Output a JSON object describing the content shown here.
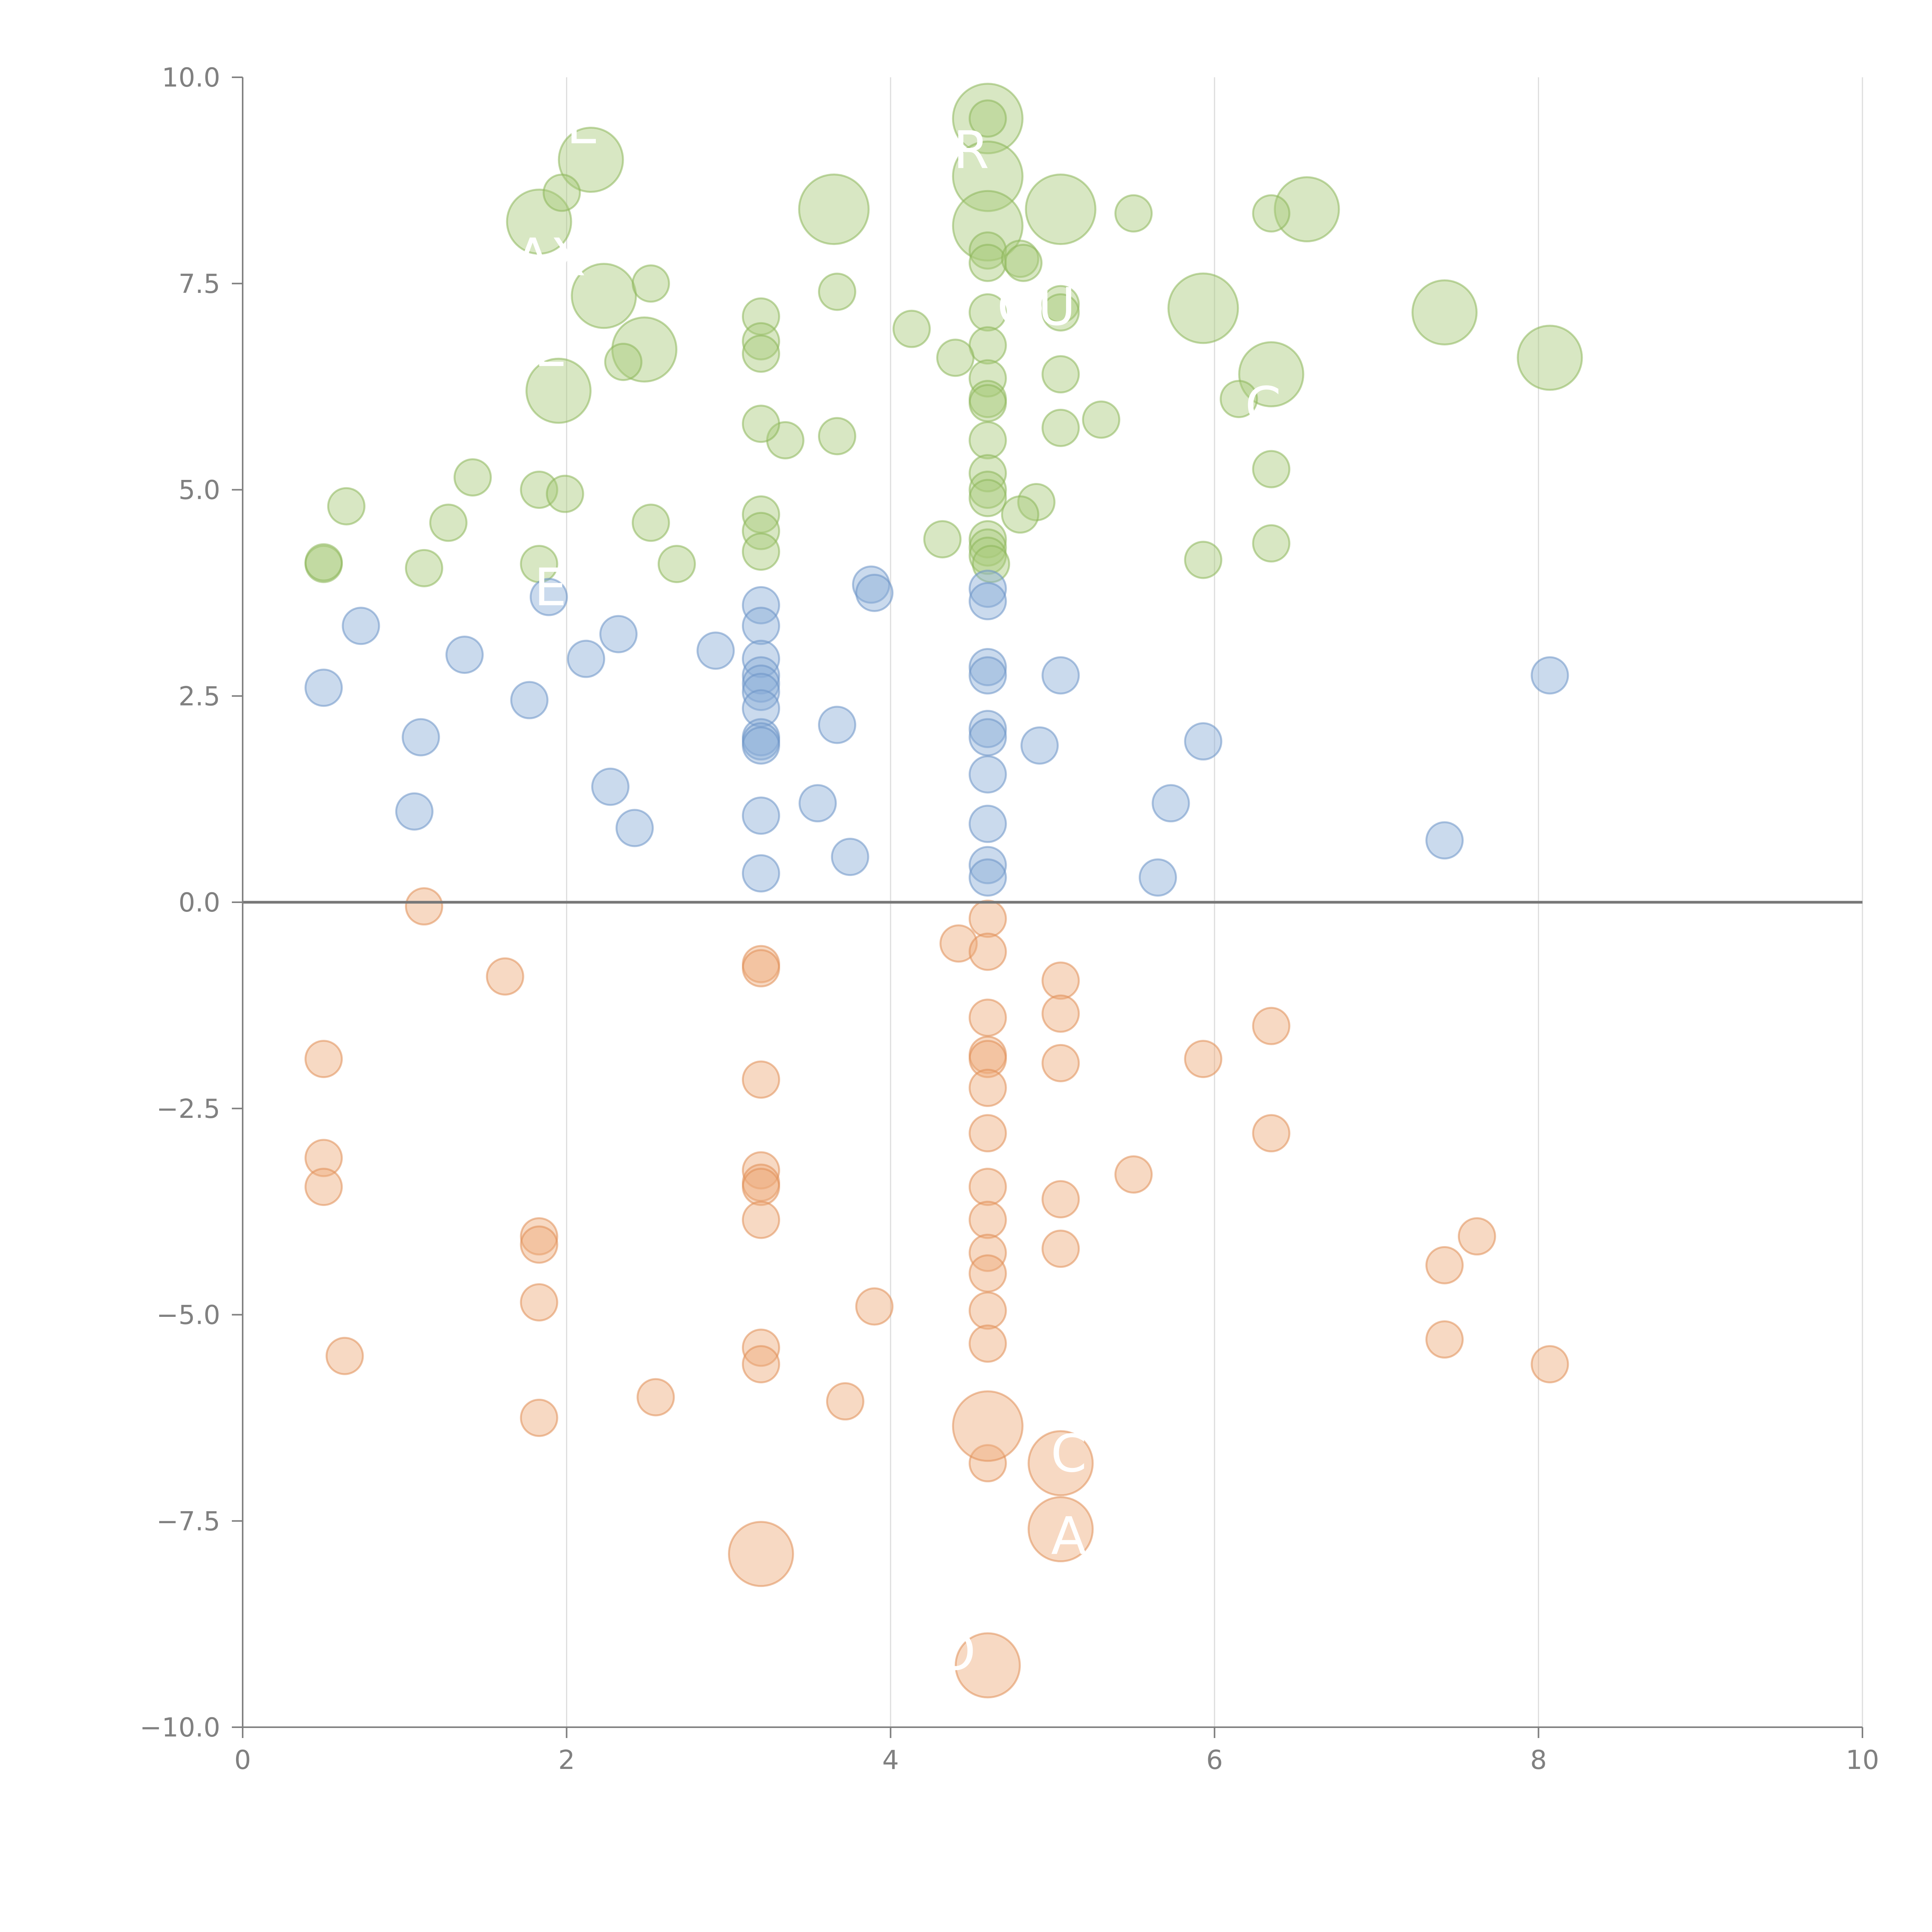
{
  "chart_data": {
    "type": "scatter",
    "xlim": [
      0,
      10
    ],
    "ylim": [
      -10,
      10
    ],
    "x_ticks": [
      "0",
      "2",
      "4",
      "6",
      "8",
      "10"
    ],
    "y_ticks": [
      "−10.0",
      "−7.5",
      "−5.0",
      "−2.5",
      "0.0",
      "2.5",
      "5.0",
      "7.5",
      "10.0"
    ],
    "grid": "vertical",
    "zero_line": true,
    "bubble_text": [
      {
        "text": "E",
        "x": 2.1,
        "y": 9.2
      },
      {
        "text": "TR",
        "x": 4.4,
        "y": 8.9
      },
      {
        "text": "AX",
        "x": 1.9,
        "y": 7.6
      },
      {
        "text": "QU",
        "x": 4.9,
        "y": 7.0
      },
      {
        "text": "E",
        "x": 1.9,
        "y": 6.5
      },
      {
        "text": "C",
        "x": 6.3,
        "y": 5.8
      },
      {
        "text": "E",
        "x": 1.9,
        "y": 3.6
      },
      {
        "text": "C",
        "x": 5.1,
        "y": -6.9
      },
      {
        "text": "A",
        "x": 5.1,
        "y": -7.9
      },
      {
        "text": "O",
        "x": 4.4,
        "y": -9.3
      }
    ],
    "series": [
      {
        "color": "#a8c97a",
        "stroke": "#8db65a",
        "points": [
          [
            4.6,
            9.5,
            6
          ],
          [
            4.6,
            8.8,
            6
          ],
          [
            4.6,
            8.2,
            6
          ],
          [
            5.05,
            8.4,
            6
          ],
          [
            3.65,
            8.4,
            6
          ],
          [
            2.15,
            9.0,
            5
          ],
          [
            1.83,
            8.25,
            5
          ],
          [
            6.57,
            8.4,
            5
          ],
          [
            5.93,
            7.2,
            6
          ],
          [
            7.42,
            7.15,
            5
          ],
          [
            6.35,
            6.4,
            5
          ],
          [
            8.07,
            6.6,
            5
          ],
          [
            2.23,
            7.35,
            5
          ],
          [
            2.48,
            6.7,
            5
          ],
          [
            1.95,
            6.2,
            5
          ],
          [
            4.6,
            9.5,
            2
          ],
          [
            4.6,
            7.9,
            2
          ],
          [
            4.6,
            7.75,
            2
          ],
          [
            4.6,
            7.15,
            2
          ],
          [
            4.6,
            6.75,
            2
          ],
          [
            4.6,
            6.35,
            2
          ],
          [
            4.6,
            6.1,
            2
          ],
          [
            4.6,
            6.05,
            2
          ],
          [
            4.6,
            5.6,
            2
          ],
          [
            4.6,
            5.2,
            2
          ],
          [
            4.6,
            5.0,
            2
          ],
          [
            4.6,
            4.9,
            2
          ],
          [
            4.6,
            4.4,
            2
          ],
          [
            4.6,
            4.3,
            2
          ],
          [
            4.6,
            4.2,
            2
          ],
          [
            4.62,
            4.1,
            2
          ],
          [
            4.8,
            7.8,
            2
          ],
          [
            4.82,
            7.75,
            2
          ],
          [
            5.05,
            7.25,
            2
          ],
          [
            5.05,
            7.15,
            2
          ],
          [
            5.05,
            6.4,
            2
          ],
          [
            5.05,
            5.75,
            2
          ],
          [
            5.3,
            5.85,
            2
          ],
          [
            4.9,
            4.85,
            2
          ],
          [
            4.8,
            4.7,
            2
          ],
          [
            4.32,
            4.4,
            2
          ],
          [
            4.4,
            6.6,
            2
          ],
          [
            4.13,
            6.95,
            2
          ],
          [
            3.67,
            7.4,
            2
          ],
          [
            3.67,
            5.65,
            2
          ],
          [
            3.35,
            5.6,
            2
          ],
          [
            3.2,
            7.1,
            2
          ],
          [
            3.2,
            6.8,
            2
          ],
          [
            3.2,
            6.65,
            2
          ],
          [
            3.2,
            5.8,
            2
          ],
          [
            3.2,
            4.7,
            2
          ],
          [
            3.2,
            4.5,
            2
          ],
          [
            3.2,
            4.25,
            2
          ],
          [
            5.5,
            8.35,
            2
          ],
          [
            6.35,
            8.35,
            2
          ],
          [
            6.15,
            6.1,
            2
          ],
          [
            6.35,
            5.25,
            2
          ],
          [
            6.35,
            4.35,
            2
          ],
          [
            5.93,
            4.15,
            2
          ],
          [
            1.97,
            8.6,
            2
          ],
          [
            2.52,
            7.5,
            2
          ],
          [
            2.35,
            6.55,
            2
          ],
          [
            1.83,
            5.0,
            2
          ],
          [
            1.99,
            4.95,
            2
          ],
          [
            1.42,
            5.15,
            2
          ],
          [
            1.27,
            4.6,
            2
          ],
          [
            0.64,
            4.8,
            2
          ],
          [
            0.5,
            4.1,
            2
          ],
          [
            0.5,
            4.12,
            2
          ],
          [
            1.12,
            4.05,
            2
          ],
          [
            1.83,
            4.1,
            2
          ],
          [
            2.52,
            4.6,
            2
          ],
          [
            2.68,
            4.1,
            2
          ]
        ]
      },
      {
        "color": "#8aaed6",
        "stroke": "#6b94c6",
        "points": [
          [
            1.89,
            3.7,
            2
          ],
          [
            0.73,
            3.35,
            2
          ],
          [
            0.5,
            2.6,
            2
          ],
          [
            1.37,
            3.0,
            2
          ],
          [
            1.1,
            2.0,
            2
          ],
          [
            1.06,
            1.1,
            2
          ],
          [
            1.77,
            2.45,
            2
          ],
          [
            2.12,
            2.95,
            2
          ],
          [
            2.32,
            3.25,
            2
          ],
          [
            2.27,
            1.4,
            2
          ],
          [
            2.42,
            0.9,
            2
          ],
          [
            2.92,
            3.05,
            2
          ],
          [
            3.2,
            3.6,
            2
          ],
          [
            3.2,
            3.35,
            2
          ],
          [
            3.2,
            2.95,
            2
          ],
          [
            3.2,
            2.75,
            2
          ],
          [
            3.2,
            2.65,
            2
          ],
          [
            3.2,
            2.55,
            2
          ],
          [
            3.2,
            2.35,
            2
          ],
          [
            3.2,
            2.0,
            2
          ],
          [
            3.2,
            1.95,
            2
          ],
          [
            3.2,
            1.9,
            2
          ],
          [
            3.2,
            1.05,
            2
          ],
          [
            3.2,
            0.35,
            2
          ],
          [
            3.55,
            1.2,
            2
          ],
          [
            3.67,
            2.15,
            2
          ],
          [
            3.75,
            0.55,
            2
          ],
          [
            3.88,
            3.85,
            2
          ],
          [
            3.9,
            3.75,
            2
          ],
          [
            4.6,
            3.8,
            2
          ],
          [
            4.6,
            3.65,
            2
          ],
          [
            4.6,
            2.85,
            2
          ],
          [
            4.6,
            2.75,
            2
          ],
          [
            4.6,
            2.1,
            2
          ],
          [
            4.6,
            2.0,
            2
          ],
          [
            4.6,
            1.55,
            2
          ],
          [
            4.6,
            0.95,
            2
          ],
          [
            4.6,
            0.45,
            2
          ],
          [
            4.6,
            0.3,
            2
          ],
          [
            4.92,
            1.9,
            2
          ],
          [
            5.05,
            2.75,
            2
          ],
          [
            5.65,
            0.3,
            2
          ],
          [
            5.73,
            1.2,
            2
          ],
          [
            5.93,
            1.95,
            2
          ],
          [
            7.42,
            0.75,
            2
          ],
          [
            8.07,
            2.75,
            2
          ]
        ]
      },
      {
        "color": "#eeaa7a",
        "stroke": "#e08e55",
        "points": [
          [
            1.12,
            -0.05,
            2
          ],
          [
            1.62,
            -0.9,
            2
          ],
          [
            0.5,
            -1.9,
            2
          ],
          [
            0.5,
            -3.1,
            2
          ],
          [
            0.5,
            -3.45,
            2
          ],
          [
            0.63,
            -5.5,
            2
          ],
          [
            1.83,
            -4.05,
            2
          ],
          [
            1.83,
            -4.15,
            2
          ],
          [
            1.83,
            -4.85,
            2
          ],
          [
            1.83,
            -6.25,
            2
          ],
          [
            2.55,
            -6.0,
            2
          ],
          [
            3.2,
            -0.75,
            2
          ],
          [
            3.2,
            -0.8,
            2
          ],
          [
            3.2,
            -2.15,
            2
          ],
          [
            3.2,
            -3.25,
            2
          ],
          [
            3.2,
            -3.4,
            2
          ],
          [
            3.2,
            -3.45,
            2
          ],
          [
            3.2,
            -3.85,
            2
          ],
          [
            3.2,
            -5.4,
            2
          ],
          [
            3.2,
            -5.6,
            2
          ],
          [
            3.72,
            -6.05,
            2
          ],
          [
            3.9,
            -4.9,
            2
          ],
          [
            4.42,
            -0.5,
            2
          ],
          [
            4.6,
            -0.2,
            2
          ],
          [
            4.6,
            -0.6,
            2
          ],
          [
            4.6,
            -1.4,
            2
          ],
          [
            4.6,
            -1.85,
            2
          ],
          [
            4.6,
            -1.9,
            2
          ],
          [
            4.6,
            -2.25,
            2
          ],
          [
            4.6,
            -2.8,
            2
          ],
          [
            4.6,
            -3.45,
            2
          ],
          [
            4.6,
            -3.85,
            2
          ],
          [
            4.6,
            -4.25,
            2
          ],
          [
            4.6,
            -4.5,
            2
          ],
          [
            4.6,
            -4.95,
            2
          ],
          [
            4.6,
            -5.35,
            2
          ],
          [
            4.6,
            -6.8,
            2
          ],
          [
            5.05,
            -0.95,
            2
          ],
          [
            5.05,
            -1.35,
            2
          ],
          [
            5.05,
            -1.95,
            2
          ],
          [
            5.05,
            -3.6,
            2
          ],
          [
            5.05,
            -4.2,
            2
          ],
          [
            5.5,
            -3.3,
            2
          ],
          [
            5.93,
            -1.9,
            2
          ],
          [
            6.35,
            -1.5,
            2
          ],
          [
            6.35,
            -2.8,
            2
          ],
          [
            7.42,
            -4.4,
            2
          ],
          [
            7.42,
            -5.3,
            2
          ],
          [
            7.62,
            -4.05,
            2
          ],
          [
            8.07,
            -5.6,
            2
          ],
          [
            4.6,
            -6.35,
            6
          ],
          [
            5.05,
            -6.8,
            5
          ],
          [
            5.05,
            -7.6,
            5
          ],
          [
            3.2,
            -7.9,
            5
          ],
          [
            4.6,
            -9.25,
            5
          ]
        ]
      }
    ]
  }
}
